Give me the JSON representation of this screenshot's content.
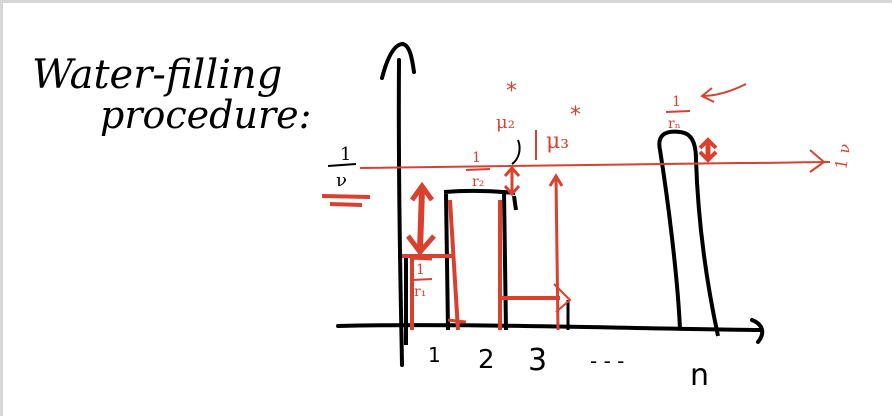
{
  "note": {
    "title_line1": "Water-filling",
    "title_line2": "procedure:"
  },
  "axis_labels": {
    "x_ticks": [
      "1",
      "2",
      "3",
      "- - -",
      "n"
    ]
  },
  "annotations": {
    "level_left_num": "1",
    "level_left_den": "ν",
    "level_right_num": "1",
    "level_right_den": "ν",
    "r1_num": "1",
    "r1_den": "r₁",
    "r2_num": "1",
    "r2_den": "r₂",
    "rn_num": "1",
    "rn_den": "rₙ",
    "mu2": "μ₂",
    "mu3": "μ₃",
    "star": "*"
  },
  "colors": {
    "ink": "#000000",
    "red_ink": "#d9412e",
    "frame": "#d6d6d6"
  }
}
